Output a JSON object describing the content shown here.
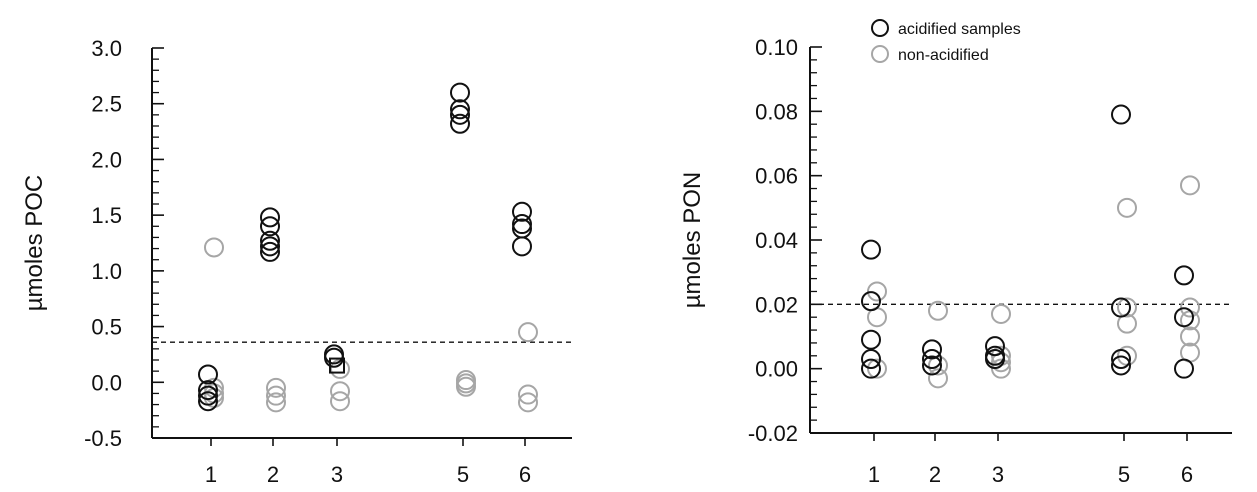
{
  "colors": {
    "acidified": "#111111",
    "non_acidified": "#a6a6a6",
    "axis": "#111111"
  },
  "chart_data": [
    {
      "type": "scatter",
      "ylabel": "µmoles POC",
      "ylim": [
        -0.5,
        3.0
      ],
      "yticks": [
        "-0.5",
        "0.0",
        "0.5",
        "1.0",
        "1.5",
        "2.0",
        "2.5",
        "3.0"
      ],
      "ytick_values": [
        -0.5,
        0.0,
        0.5,
        1.0,
        1.5,
        2.0,
        2.5,
        3.0
      ],
      "minor_ticks_per_major": 4,
      "categories": [
        "1",
        "2",
        "3",
        "5",
        "6"
      ],
      "category_positions": [
        1,
        2,
        3,
        5,
        6
      ],
      "threshold": 0.36,
      "series": [
        {
          "key": "acidified",
          "points": [
            {
              "x": 1,
              "y": 0.07
            },
            {
              "x": 1,
              "y": -0.07
            },
            {
              "x": 1,
              "y": -0.12
            },
            {
              "x": 1,
              "y": -0.17
            },
            {
              "x": 2,
              "y": 1.48
            },
            {
              "x": 2,
              "y": 1.4
            },
            {
              "x": 2,
              "y": 1.27
            },
            {
              "x": 2,
              "y": 1.22
            },
            {
              "x": 2,
              "y": 1.17
            },
            {
              "x": 3,
              "y": 0.25
            },
            {
              "x": 3,
              "y": 0.22
            },
            {
              "x": 5,
              "y": 2.6
            },
            {
              "x": 5,
              "y": 2.45
            },
            {
              "x": 5,
              "y": 2.4
            },
            {
              "x": 5,
              "y": 2.32
            },
            {
              "x": 6,
              "y": 1.53
            },
            {
              "x": 6,
              "y": 1.42
            },
            {
              "x": 6,
              "y": 1.38
            },
            {
              "x": 6,
              "y": 1.22
            }
          ]
        },
        {
          "key": "non_acidified",
          "points": [
            {
              "x": 1,
              "y": 1.21
            },
            {
              "x": 1,
              "y": -0.05
            },
            {
              "x": 1,
              "y": -0.1
            },
            {
              "x": 1,
              "y": -0.14
            },
            {
              "x": 2,
              "y": -0.05
            },
            {
              "x": 2,
              "y": -0.12
            },
            {
              "x": 2,
              "y": -0.18
            },
            {
              "x": 3,
              "y": 0.12
            },
            {
              "x": 3,
              "y": -0.08
            },
            {
              "x": 3,
              "y": -0.17
            },
            {
              "x": 5,
              "y": 0.02
            },
            {
              "x": 5,
              "y": -0.01
            },
            {
              "x": 5,
              "y": -0.04
            },
            {
              "x": 6,
              "y": 0.45
            },
            {
              "x": 6,
              "y": -0.11
            },
            {
              "x": 6,
              "y": -0.18
            }
          ]
        }
      ],
      "square_markers": [
        {
          "x": 3,
          "y": 0.15
        }
      ]
    },
    {
      "type": "scatter",
      "ylabel": "µmoles PON",
      "ylim": [
        -0.02,
        0.1
      ],
      "yticks": [
        "-0.02",
        "0.00",
        "0.02",
        "0.04",
        "0.06",
        "0.08",
        "0.10"
      ],
      "ytick_values": [
        -0.02,
        0.0,
        0.02,
        0.04,
        0.06,
        0.08,
        0.1
      ],
      "minor_ticks_per_major": 4,
      "categories": [
        "1",
        "2",
        "3",
        "5",
        "6"
      ],
      "category_positions": [
        1,
        2,
        3,
        5,
        6
      ],
      "threshold": 0.02,
      "legend": [
        {
          "key": "acidified",
          "label": "acidified samples"
        },
        {
          "key": "non_acidified",
          "label": "non-acidified"
        }
      ],
      "series": [
        {
          "key": "acidified",
          "points": [
            {
              "x": 1,
              "y": 0.037
            },
            {
              "x": 1,
              "y": 0.021
            },
            {
              "x": 1,
              "y": 0.009
            },
            {
              "x": 1,
              "y": 0.003
            },
            {
              "x": 1,
              "y": 0.0
            },
            {
              "x": 2,
              "y": 0.006
            },
            {
              "x": 2,
              "y": 0.003
            },
            {
              "x": 2,
              "y": 0.001
            },
            {
              "x": 3,
              "y": 0.007
            },
            {
              "x": 3,
              "y": 0.004
            },
            {
              "x": 3,
              "y": 0.003
            },
            {
              "x": 5,
              "y": 0.079
            },
            {
              "x": 5,
              "y": 0.019
            },
            {
              "x": 5,
              "y": 0.003
            },
            {
              "x": 5,
              "y": 0.001
            },
            {
              "x": 6,
              "y": 0.029
            },
            {
              "x": 6,
              "y": 0.016
            },
            {
              "x": 6,
              "y": 0.0
            }
          ]
        },
        {
          "key": "non_acidified",
          "points": [
            {
              "x": 1,
              "y": 0.024
            },
            {
              "x": 1,
              "y": 0.016
            },
            {
              "x": 1,
              "y": 0.0
            },
            {
              "x": 2,
              "y": 0.018
            },
            {
              "x": 2,
              "y": 0.001
            },
            {
              "x": 2,
              "y": -0.003
            },
            {
              "x": 3,
              "y": 0.017
            },
            {
              "x": 3,
              "y": 0.004
            },
            {
              "x": 3,
              "y": 0.002
            },
            {
              "x": 3,
              "y": 0.0
            },
            {
              "x": 5,
              "y": 0.05
            },
            {
              "x": 5,
              "y": 0.019
            },
            {
              "x": 5,
              "y": 0.014
            },
            {
              "x": 5,
              "y": 0.004
            },
            {
              "x": 6,
              "y": 0.057
            },
            {
              "x": 6,
              "y": 0.019
            },
            {
              "x": 6,
              "y": 0.015
            },
            {
              "x": 6,
              "y": 0.01
            },
            {
              "x": 6,
              "y": 0.005
            }
          ]
        }
      ]
    }
  ]
}
